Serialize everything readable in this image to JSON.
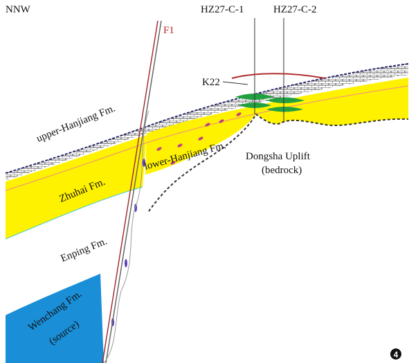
{
  "header": {
    "direction": "NNW"
  },
  "fault": {
    "label": "F1"
  },
  "wells": [
    {
      "label": "HZ27-C-1"
    },
    {
      "label": "HZ27-C-2"
    }
  ],
  "horizon": {
    "label": "K22"
  },
  "formations": [
    {
      "label": "upper-Hanjiang Fm."
    },
    {
      "label": "lower-Hanjiang Fm."
    },
    {
      "label": "Zhuhai Fm."
    },
    {
      "label": "Enping Fm."
    },
    {
      "label": "Wenchang Fm.",
      "note": "(source)"
    }
  ],
  "uplift": {
    "label": "Dongsha Uplift",
    "note": "(bedrock)"
  },
  "panel": {
    "number": "4"
  }
}
